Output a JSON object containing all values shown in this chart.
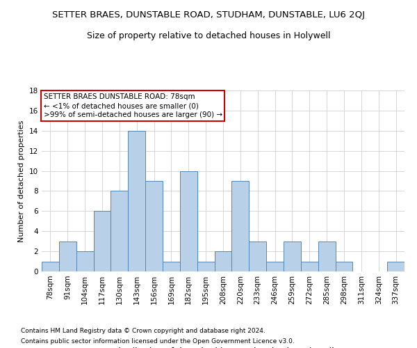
{
  "title": "SETTER BRAES, DUNSTABLE ROAD, STUDHAM, DUNSTABLE, LU6 2QJ",
  "subtitle": "Size of property relative to detached houses in Holywell",
  "xlabel": "Distribution of detached houses by size in Holywell",
  "ylabel": "Number of detached properties",
  "categories": [
    "78sqm",
    "91sqm",
    "104sqm",
    "117sqm",
    "130sqm",
    "143sqm",
    "156sqm",
    "169sqm",
    "182sqm",
    "195sqm",
    "208sqm",
    "220sqm",
    "233sqm",
    "246sqm",
    "259sqm",
    "272sqm",
    "285sqm",
    "298sqm",
    "311sqm",
    "324sqm",
    "337sqm"
  ],
  "values": [
    1,
    3,
    2,
    6,
    8,
    14,
    9,
    1,
    10,
    1,
    2,
    9,
    3,
    1,
    3,
    1,
    3,
    1,
    0,
    0,
    1
  ],
  "bar_color": "#b8d0e8",
  "bar_edge_color": "#5585b5",
  "annotation_title": "SETTER BRAES DUNSTABLE ROAD: 78sqm",
  "annotation_line2": "← <1% of detached houses are smaller (0)",
  "annotation_line3": ">99% of semi-detached houses are larger (90) →",
  "annotation_box_color": "#ffffff",
  "annotation_box_edge": "#cc0000",
  "ylim": [
    0,
    18
  ],
  "yticks": [
    0,
    2,
    4,
    6,
    8,
    10,
    12,
    14,
    16,
    18
  ],
  "footer_line1": "Contains HM Land Registry data © Crown copyright and database right 2024.",
  "footer_line2": "Contains public sector information licensed under the Open Government Licence v3.0.",
  "background_color": "#ffffff",
  "grid_color": "#d0d0d0",
  "title_fontsize": 9.5,
  "subtitle_fontsize": 9,
  "xlabel_fontsize": 9,
  "ylabel_fontsize": 8,
  "tick_fontsize": 7.5,
  "annotation_fontsize": 7.5,
  "footer_fontsize": 6.5
}
